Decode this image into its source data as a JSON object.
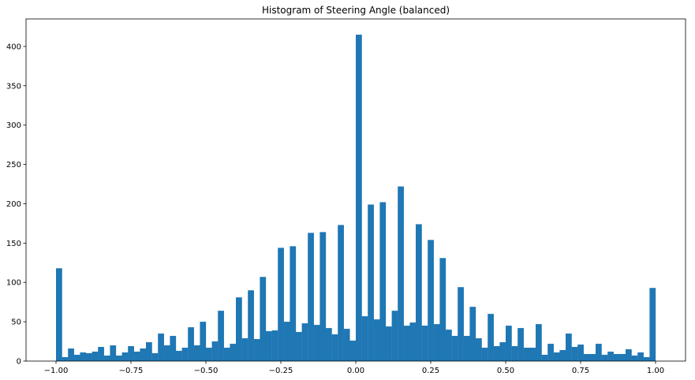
{
  "chart_data": {
    "type": "bar",
    "title": "Histogram of Steering Angle (balanced)",
    "xlabel": "",
    "ylabel": "",
    "bin_range": [
      -1.0,
      1.0
    ],
    "num_bins": 100,
    "xlim": [
      -1.1,
      1.1
    ],
    "ylim": [
      0,
      435
    ],
    "xticks": [
      -1.0,
      -0.75,
      -0.5,
      -0.25,
      0.0,
      0.25,
      0.5,
      0.75,
      1.0
    ],
    "xtick_labels": [
      "−1.00",
      "−0.75",
      "−0.50",
      "−0.25",
      "0.00",
      "0.25",
      "0.50",
      "0.75",
      "1.00"
    ],
    "yticks": [
      0,
      50,
      100,
      150,
      200,
      250,
      300,
      350,
      400
    ],
    "ytick_labels": [
      "0",
      "50",
      "100",
      "150",
      "200",
      "250",
      "300",
      "350",
      "400"
    ],
    "values": [
      118,
      5,
      16,
      8,
      11,
      10,
      12,
      18,
      7,
      20,
      7,
      11,
      19,
      12,
      16,
      24,
      10,
      35,
      20,
      32,
      13,
      17,
      43,
      20,
      50,
      17,
      25,
      64,
      17,
      22,
      81,
      29,
      90,
      28,
      107,
      38,
      39,
      144,
      50,
      146,
      37,
      48,
      163,
      46,
      164,
      42,
      34,
      173,
      41,
      26,
      415,
      57,
      199,
      53,
      202,
      44,
      64,
      222,
      45,
      49,
      174,
      45,
      154,
      47,
      131,
      40,
      32,
      94,
      32,
      69,
      29,
      17,
      60,
      19,
      24,
      45,
      19,
      42,
      17,
      17,
      47,
      8,
      22,
      11,
      14,
      35,
      18,
      21,
      9,
      9,
      22,
      8,
      12,
      9,
      9,
      15,
      7,
      11,
      5,
      93
    ],
    "grid": false,
    "color": "#1f77b4"
  }
}
